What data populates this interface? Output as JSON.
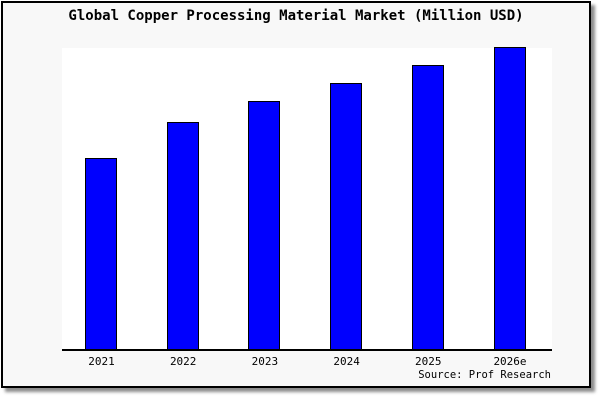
{
  "page": {
    "background": "#ffffff",
    "frame_border_color": "#000000",
    "frame_background": "#f8f8f8"
  },
  "chart_data": {
    "type": "bar",
    "title": "Global Copper Processing Material Market (Million USD)",
    "categories": [
      "2021",
      "2022",
      "2023",
      "2024",
      "2025",
      "2026e"
    ],
    "values": [
      63,
      75,
      82,
      88,
      94,
      100
    ],
    "note": "no y-axis scale or gridlines shown; values are relative bar heights with 2026e = 100",
    "xlabel": "",
    "ylabel": "",
    "ylim": [
      0,
      100
    ],
    "grid": false,
    "legend": false,
    "y_axis_visible": false,
    "bar_color": "#0000fe",
    "bar_border_color": "#000000",
    "plot_background": "#ffffff",
    "axis_line_color": "#000000"
  },
  "source": {
    "label": "Source: Prof Research"
  }
}
